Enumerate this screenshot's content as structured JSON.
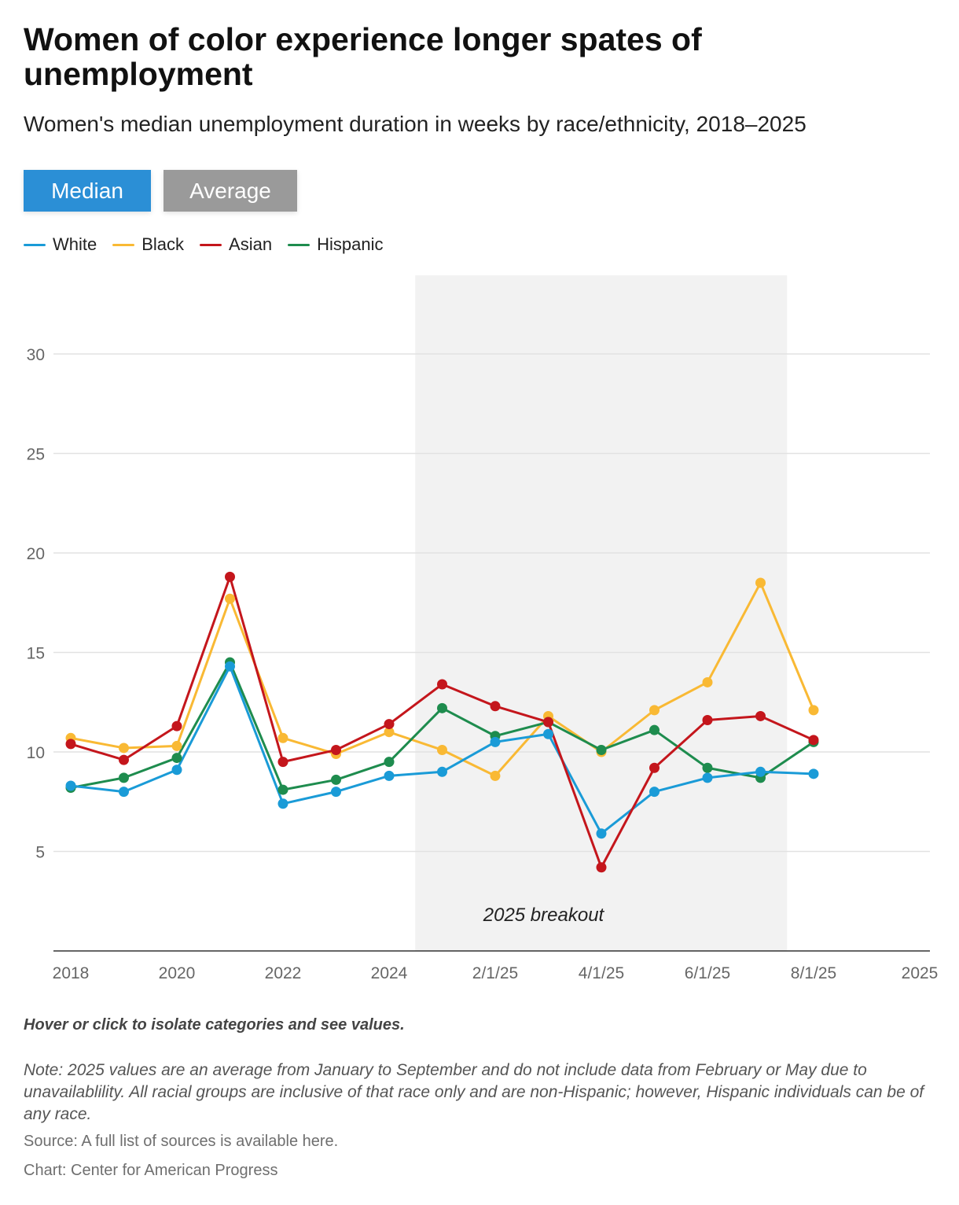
{
  "header": {
    "title": "Women of color experience longer spates of unemployment",
    "subtitle": "Women's median unemployment duration in weeks by race/ethnicity, 2018–2025"
  },
  "toggle": {
    "median_label": "Median",
    "average_label": "Average",
    "active": "Median",
    "active_color": "#2b8fd6",
    "inactive_color": "#9a9a9a"
  },
  "legend": [
    {
      "label": "White",
      "color": "#1a9bd7"
    },
    {
      "label": "Black",
      "color": "#f9b934"
    },
    {
      "label": "Asian",
      "color": "#c4161c"
    },
    {
      "label": "Hispanic",
      "color": "#1e8c4e"
    }
  ],
  "chart_data": {
    "type": "line",
    "x": [
      "2018",
      "2019",
      "2020",
      "2021",
      "2022",
      "2023",
      "2024",
      "1/1/25",
      "3/1/25",
      "4/1/25",
      "6/1/25",
      "7/1/25",
      "8/1/25",
      "9/1/25",
      "2025"
    ],
    "x_tick_labels": [
      "2018",
      "2020",
      "2022",
      "2024",
      "2/1/25",
      "4/1/25",
      "6/1/25",
      "8/1/25",
      "2025"
    ],
    "ylim": [
      0,
      33
    ],
    "y_ticks": [
      5,
      10,
      15,
      20,
      25,
      30
    ],
    "grid": true,
    "legend_position": "top-left",
    "series": [
      {
        "name": "White",
        "color": "#1a9bd7",
        "values": [
          8.3,
          8.0,
          9.1,
          14.3,
          7.4,
          8.0,
          8.8,
          9.0,
          10.5,
          10.9,
          5.9,
          8.0,
          8.7,
          9.0,
          8.9
        ]
      },
      {
        "name": "Black",
        "color": "#f9b934",
        "values": [
          10.7,
          10.2,
          10.3,
          17.7,
          10.7,
          9.9,
          11.0,
          10.1,
          8.8,
          11.8,
          10.0,
          12.1,
          13.5,
          18.5,
          12.1
        ]
      },
      {
        "name": "Asian",
        "color": "#c4161c",
        "values": [
          10.4,
          9.6,
          11.3,
          18.8,
          9.5,
          10.1,
          11.4,
          13.4,
          12.3,
          11.5,
          4.2,
          9.2,
          11.6,
          11.8,
          10.6
        ]
      },
      {
        "name": "Hispanic",
        "color": "#1e8c4e",
        "values": [
          8.2,
          8.7,
          9.7,
          14.5,
          8.1,
          8.6,
          9.5,
          12.2,
          10.8,
          11.5,
          10.1,
          11.1,
          9.2,
          8.7,
          10.5
        ]
      }
    ],
    "annotation": {
      "label": "2025 breakout",
      "from": "1/1/25",
      "to": "9/1/25",
      "color": "#f2f2f2"
    }
  },
  "footer": {
    "hint": "Hover or click to isolate categories and see values.",
    "note": "Note: 2025 values are an average from January to September and do not include data from February or May due to unavailablility. All racial groups are inclusive of that race only and are non-Hispanic; however, Hispanic individuals can be of any race.",
    "source_prefix": "Source: A full list of sources is available ",
    "source_link": "here",
    "source_suffix": ".",
    "credit": "Chart: Center for American Progress"
  }
}
